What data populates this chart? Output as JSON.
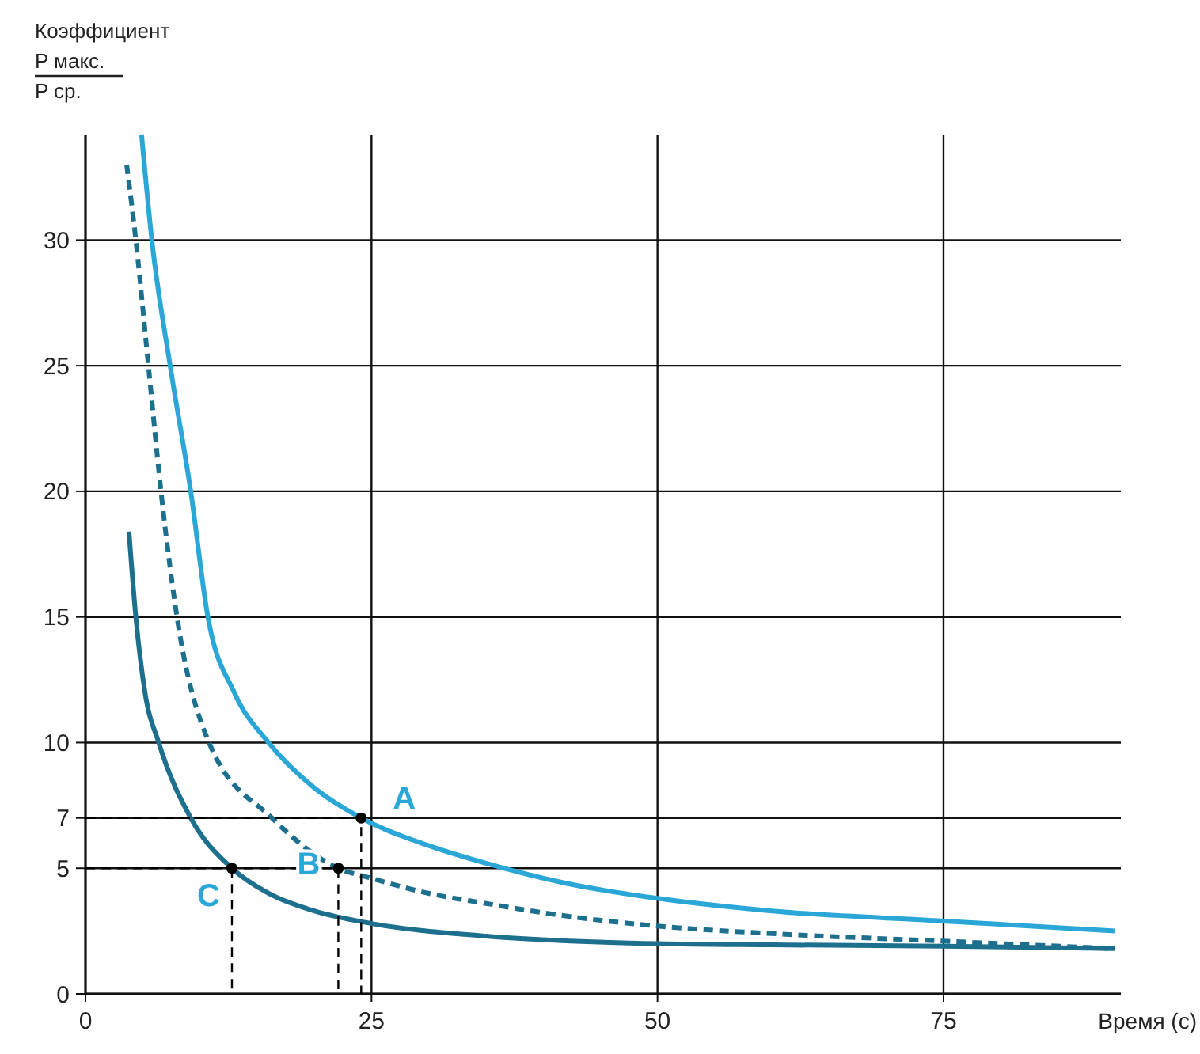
{
  "chart_data": {
    "type": "line",
    "xlabel": "Время (с)",
    "ylabel": "Коэффициент\nP макс.\nP ср.",
    "xlim": [
      0,
      90.5
    ],
    "ylim": [
      0,
      34.2
    ],
    "xticks": [
      0,
      25,
      50,
      75
    ],
    "yticks": [
      0,
      5,
      7,
      10,
      15,
      20,
      25,
      30
    ],
    "grid": true,
    "series": [
      {
        "color": "#2aa7d6",
        "line_style": "solid",
        "x": [
          4.9,
          5.8,
          7.4,
          9.2,
          10.7,
          13,
          16,
          20,
          24.1,
          30,
          35,
          42,
          50,
          60,
          75,
          90
        ],
        "values": [
          34.2,
          30,
          25,
          20,
          15,
          12,
          10,
          8.2,
          7,
          5.9,
          5.2,
          4.4,
          3.8,
          3.3,
          2.9,
          2.5
        ]
      },
      {
        "color": "#1d6f8e",
        "line_style": "dashed",
        "x": [
          3.6,
          4.4,
          5.5,
          6.6,
          8,
          10.8,
          16.3,
          22.1,
          25,
          30,
          35,
          42,
          50,
          60,
          75,
          90
        ],
        "values": [
          33,
          30,
          25,
          20,
          15,
          10,
          7,
          5,
          4.6,
          4,
          3.6,
          3.1,
          2.7,
          2.4,
          2.1,
          1.8
        ]
      },
      {
        "color": "#1d6f8e",
        "line_style": "solid",
        "x": [
          3.8,
          4.4,
          5.2,
          6.4,
          9.2,
          12.8,
          16,
          20,
          25,
          35,
          50,
          60,
          75,
          90
        ],
        "values": [
          18.4,
          15,
          12,
          10,
          7,
          5,
          4,
          3.3,
          2.8,
          2.3,
          2,
          1.95,
          1.9,
          1.8
        ]
      },
      {
        "color": "#000000",
        "line_style": "dashed",
        "x": [
          0,
          24.1,
          24.1
        ],
        "values": [
          7,
          7,
          0
        ]
      },
      {
        "color": "#000000",
        "line_style": "dashed",
        "x": [
          0,
          22.1,
          22.1
        ],
        "values": [
          5,
          5,
          0
        ]
      },
      {
        "color": "#000000",
        "line_style": "dashed",
        "x": [
          12.8,
          12.8
        ],
        "values": [
          5,
          0
        ]
      },
      {
        "type": "scatter",
        "color": "#000000",
        "marker": "circle",
        "x": [
          24.1,
          22.1,
          12.8
        ],
        "values": [
          7,
          5,
          5
        ]
      }
    ],
    "annotations": [
      {
        "text": "A",
        "x": 24.1,
        "y": 7
      },
      {
        "text": "B",
        "x": 22.1,
        "y": 5
      },
      {
        "text": "C",
        "x": 12.8,
        "y": 5
      }
    ]
  }
}
